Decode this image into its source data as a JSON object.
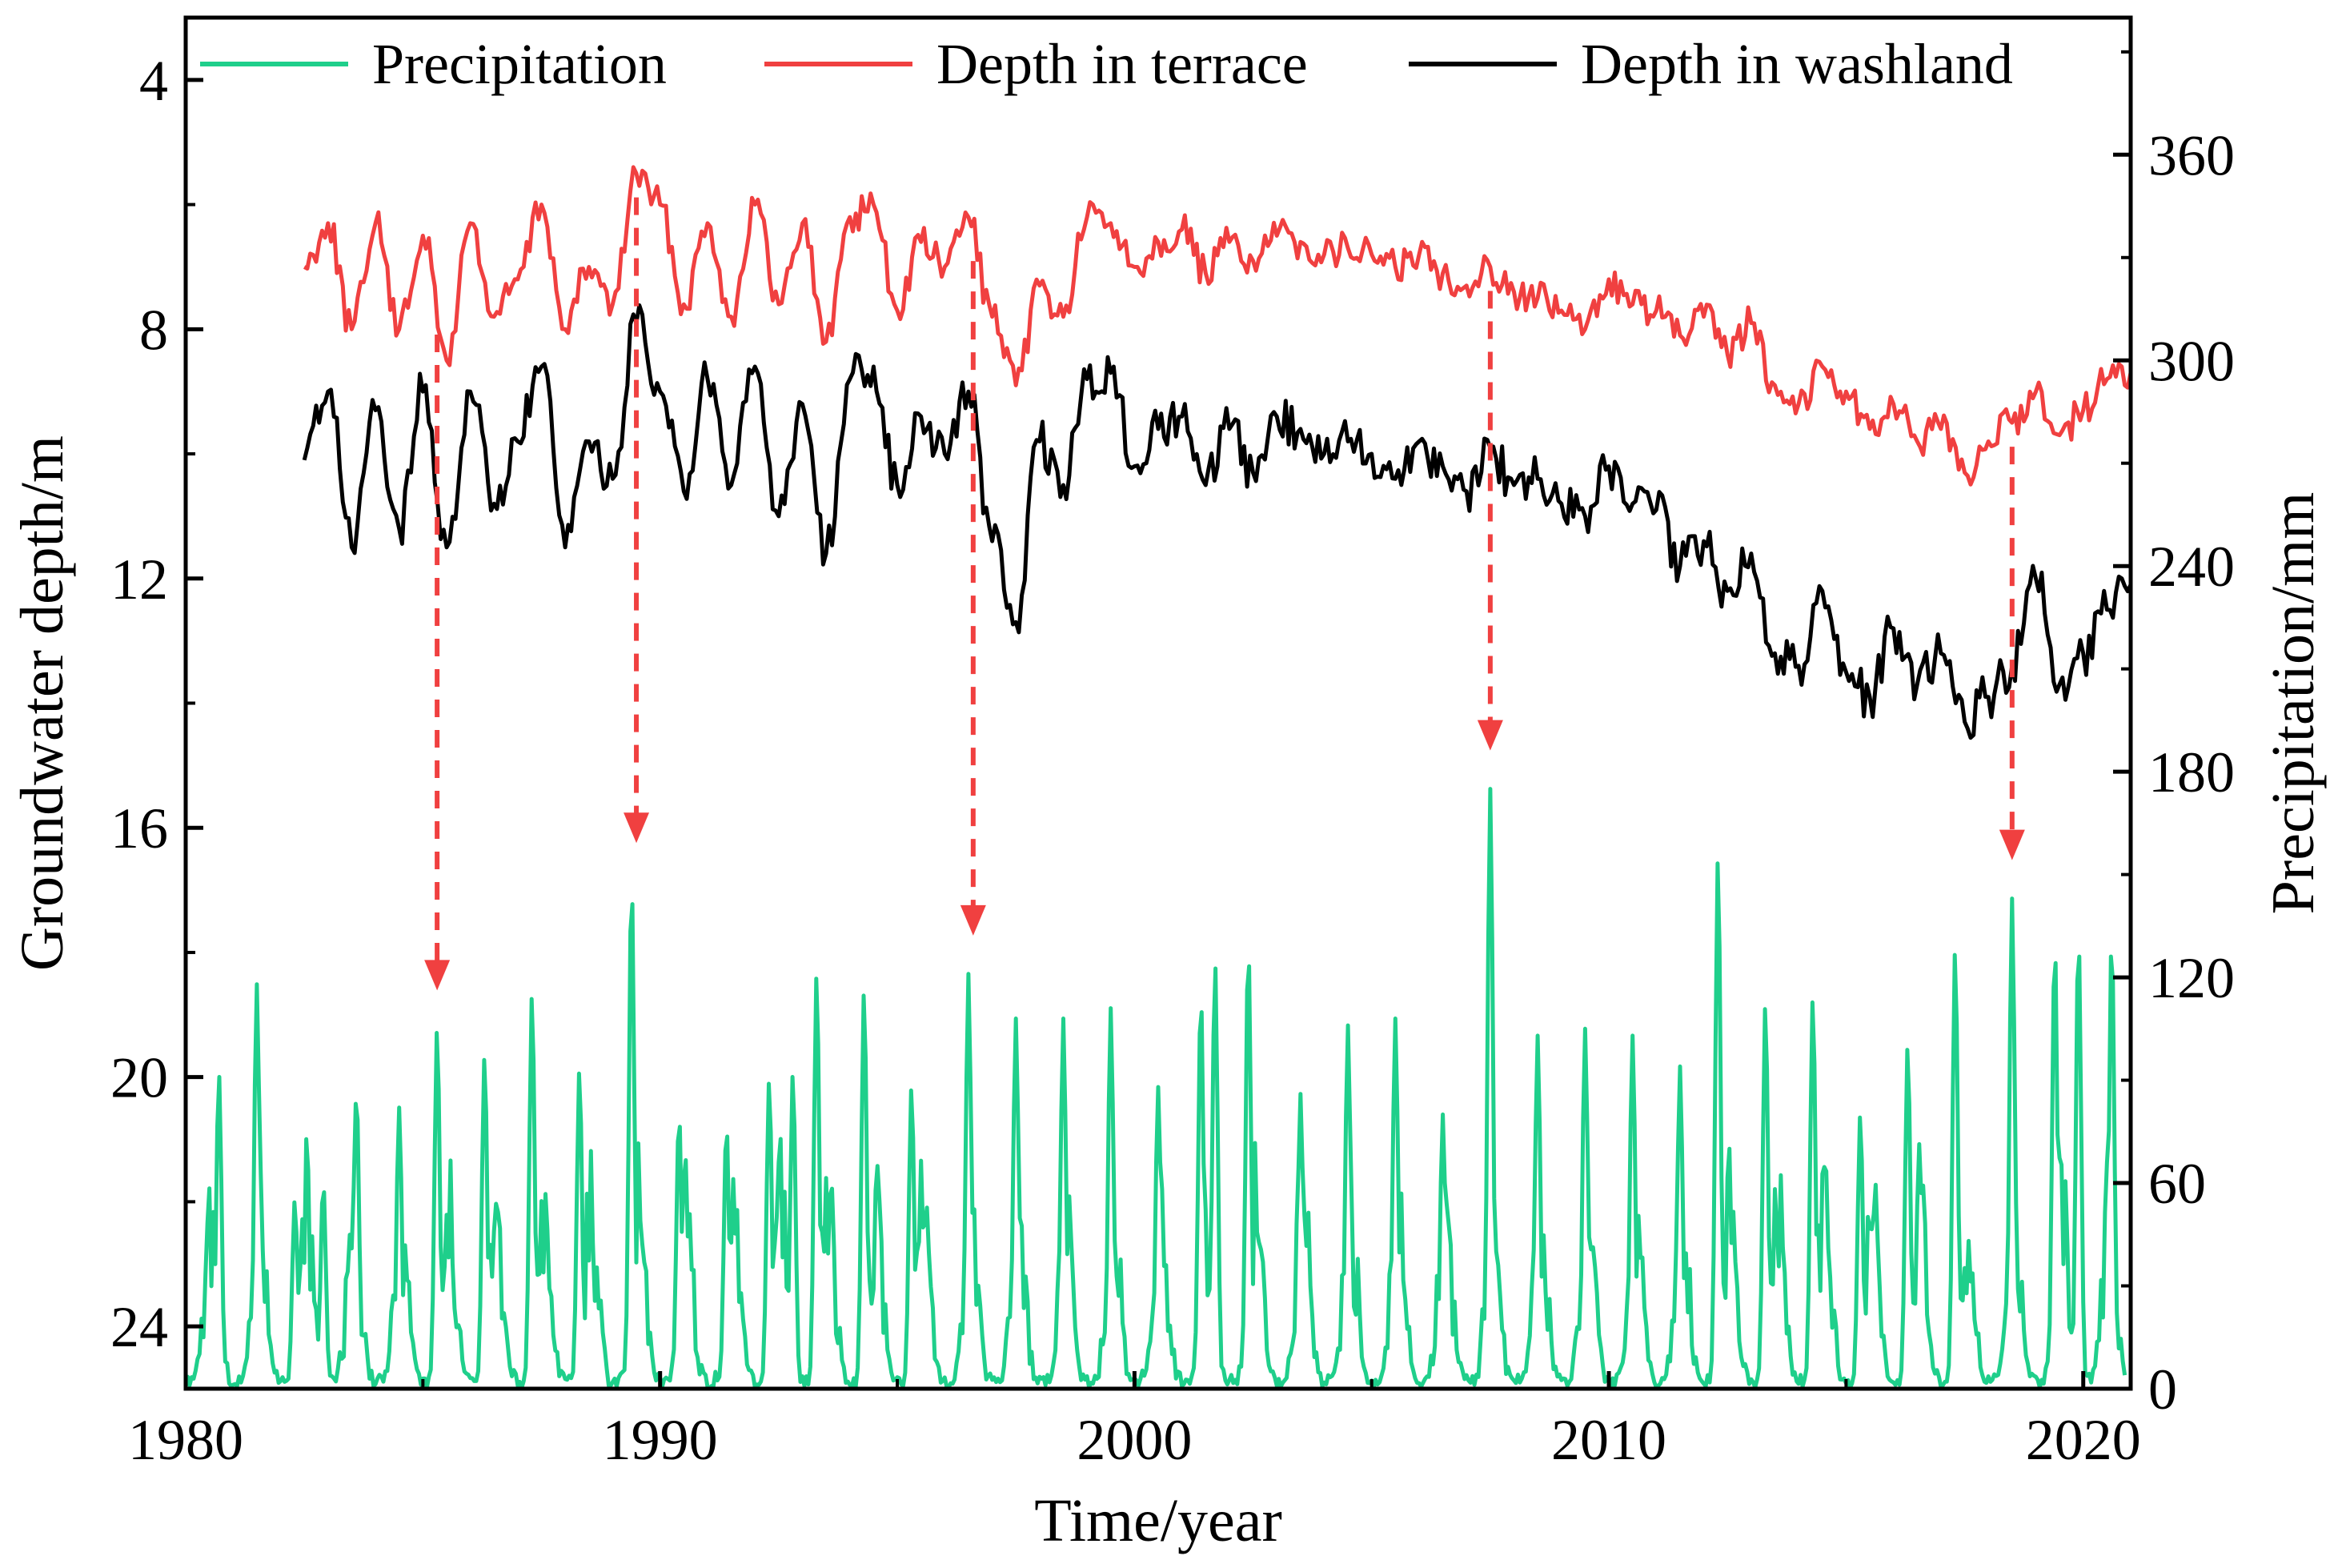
{
  "chart_data": {
    "type": "line",
    "title": "",
    "xlabel": "Time/year",
    "ylabel_left": "Groundwater depth/m",
    "ylabel_right": "Precipitation/mm",
    "xlim": [
      1980,
      2021
    ],
    "ylim_left": [
      25,
      3
    ],
    "ylim_right": [
      0,
      400
    ],
    "left_axis_inverted": true,
    "grid": false,
    "legend_position": "top",
    "x_ticks": [
      1980,
      1990,
      2000,
      2010,
      2020
    ],
    "x_tick_labels": [
      "1980",
      "1990",
      "2000",
      "2010",
      "2020"
    ],
    "y_left_ticks": [
      4,
      8,
      12,
      16,
      20,
      24
    ],
    "y_left_tick_labels": [
      "4",
      "8",
      "12",
      "16",
      "20",
      "24"
    ],
    "y_right_ticks": [
      0,
      60,
      120,
      180,
      240,
      300,
      360
    ],
    "y_right_tick_labels": [
      "0",
      "60",
      "120",
      "180",
      "240",
      "300",
      "360"
    ],
    "legend": [
      {
        "key": "precip",
        "label": "Precipitation",
        "color": "#1fcf8b"
      },
      {
        "key": "terrace",
        "label": "Depth in terrace",
        "color": "#f04040"
      },
      {
        "key": "washland",
        "label": "Depth in washland",
        "color": "#000000"
      }
    ],
    "series": [
      {
        "name": "Depth in terrace",
        "axis": "left",
        "color": "#f04040",
        "x": [
          1982.5,
          1983.0,
          1983.5,
          1984.0,
          1984.5,
          1985.0,
          1985.5,
          1986.0,
          1986.5,
          1987.0,
          1987.5,
          1988.0,
          1988.5,
          1989.0,
          1989.5,
          1990.0,
          1990.5,
          1991.0,
          1991.5,
          1992.0,
          1992.5,
          1993.0,
          1993.5,
          1994.0,
          1994.5,
          1995.0,
          1995.5,
          1996.0,
          1996.5,
          1997.0,
          1997.5,
          1998.0,
          1998.5,
          1999.0,
          1999.5,
          2000.0,
          2000.5,
          2001.0,
          2001.5,
          2002.0,
          2002.5,
          2003.0,
          2003.5,
          2004.0,
          2004.5,
          2005.0,
          2005.5,
          2006.0,
          2006.5,
          2007.0,
          2007.5,
          2008.0,
          2008.5,
          2009.0,
          2009.5,
          2010.0,
          2010.5,
          2011.0,
          2011.5,
          2012.0,
          2012.5,
          2013.0,
          2013.5,
          2014.0,
          2014.5,
          2015.0,
          2015.5,
          2016.0,
          2016.5,
          2017.0,
          2017.5,
          2018.0,
          2018.5,
          2019.0,
          2019.5,
          2020.0,
          2020.5,
          2021.0
        ],
        "y": [
          7.0,
          6.3,
          8.0,
          6.3,
          8.0,
          6.5,
          8.5,
          6.3,
          7.8,
          7.2,
          6.0,
          8.0,
          7.0,
          7.6,
          5.5,
          6.0,
          7.6,
          6.3,
          7.8,
          6.0,
          7.6,
          6.3,
          8.2,
          6.2,
          6.0,
          7.7,
          6.6,
          7.0,
          6.2,
          7.8,
          8.9,
          7.3,
          7.8,
          6.2,
          6.3,
          7.0,
          6.6,
          6.4,
          7.1,
          6.6,
          6.9,
          6.5,
          6.6,
          6.8,
          6.7,
          6.8,
          7.0,
          6.8,
          7.1,
          7.3,
          7.0,
          7.4,
          7.5,
          7.7,
          8.0,
          7.2,
          7.6,
          7.7,
          8.1,
          7.8,
          8.4,
          7.9,
          8.9,
          9.2,
          8.6,
          9.0,
          9.6,
          9.2,
          9.8,
          9.6,
          10.3,
          9.8,
          9.5,
          9.0,
          9.7,
          9.3,
          8.8,
          8.7
        ]
      },
      {
        "name": "Depth in washland",
        "axis": "left",
        "color": "#000000",
        "x": [
          1982.5,
          1983.0,
          1983.5,
          1984.0,
          1984.5,
          1985.0,
          1985.5,
          1986.0,
          1986.5,
          1987.0,
          1987.5,
          1988.0,
          1988.5,
          1989.0,
          1989.5,
          1990.0,
          1990.5,
          1991.0,
          1991.5,
          1992.0,
          1992.5,
          1993.0,
          1993.5,
          1994.0,
          1994.5,
          1995.0,
          1995.5,
          1996.0,
          1996.5,
          1997.0,
          1997.5,
          1998.0,
          1998.5,
          1999.0,
          1999.5,
          2000.0,
          2000.5,
          2001.0,
          2001.5,
          2002.0,
          2002.5,
          2003.0,
          2003.5,
          2004.0,
          2004.5,
          2005.0,
          2005.5,
          2006.0,
          2006.5,
          2007.0,
          2007.5,
          2008.0,
          2008.5,
          2009.0,
          2009.5,
          2010.0,
          2010.5,
          2011.0,
          2011.5,
          2012.0,
          2012.5,
          2013.0,
          2013.5,
          2014.0,
          2014.5,
          2015.0,
          2015.5,
          2016.0,
          2016.5,
          2017.0,
          2017.5,
          2018.0,
          2018.5,
          2019.0,
          2019.5,
          2020.0,
          2020.5,
          2021.0
        ],
        "y": [
          10.1,
          9.0,
          11.5,
          9.3,
          11.2,
          9.0,
          11.5,
          9.0,
          10.8,
          9.8,
          8.6,
          11.5,
          9.8,
          10.4,
          7.9,
          9.0,
          10.6,
          8.8,
          10.5,
          8.6,
          11.0,
          9.2,
          11.6,
          8.8,
          8.6,
          10.5,
          9.4,
          10.0,
          9.0,
          11.4,
          12.7,
          9.8,
          10.5,
          8.8,
          8.7,
          10.2,
          9.6,
          9.4,
          10.5,
          9.6,
          10.3,
          9.4,
          9.6,
          10.0,
          9.8,
          10.0,
          10.4,
          9.8,
          10.2,
          10.6,
          9.9,
          10.5,
          10.4,
          10.8,
          11.0,
          10.2,
          10.8,
          10.9,
          11.8,
          11.4,
          12.2,
          11.6,
          13.2,
          13.4,
          12.2,
          13.5,
          13.9,
          12.8,
          13.7,
          13.2,
          14.3,
          13.9,
          13.4,
          12.0,
          13.7,
          13.2,
          12.5,
          12.1
        ]
      },
      {
        "name": "Precipitation",
        "axis": "right",
        "color": "#1fcf8b",
        "peak_years": [
          1980.7,
          1981.5,
          1982.3,
          1982.9,
          1983.6,
          1984.5,
          1985.3,
          1986.3,
          1987.3,
          1988.3,
          1989.4,
          1990.4,
          1991.4,
          1992.3,
          1992.8,
          1993.3,
          1994.3,
          1995.3,
          1996.5,
          1997.5,
          1998.5,
          1999.5,
          2000.5,
          2001.4,
          2001.7,
          2002.4,
          2003.5,
          2004.5,
          2005.5,
          2006.5,
          2007.5,
          2008.5,
          2009.5,
          2010.5,
          2011.5,
          2012.3,
          2013.3,
          2014.3,
          2015.3,
          2016.3,
          2017.3,
          2018.5,
          2019.4,
          2019.9,
          2020.6
        ],
        "peak_values": [
          92,
          118,
          55,
          60,
          87,
          82,
          105,
          97,
          115,
          93,
          148,
          80,
          77,
          90,
          92,
          121,
          116,
          88,
          121,
          108,
          108,
          111,
          88,
          115,
          124,
          129,
          86,
          106,
          108,
          80,
          175,
          103,
          105,
          103,
          94,
          155,
          112,
          114,
          80,
          100,
          128,
          143,
          130,
          132,
          132
        ]
      }
    ],
    "annotations": [
      {
        "type": "dashed-arrow",
        "x": 1985.3,
        "color": "#f04040",
        "description": "from washland depth minimum down to precipitation peak"
      },
      {
        "type": "dashed-arrow",
        "x": 1989.5,
        "color": "#f04040",
        "description": "from washland depth peak down to precipitation peak"
      },
      {
        "type": "dashed-arrow",
        "x": 1996.6,
        "color": "#f04040",
        "description": "from washland depth peak down to precipitation peak"
      },
      {
        "type": "dashed-arrow",
        "x": 2007.5,
        "color": "#f04040",
        "description": "from washland depth peak down to precipitation peak"
      },
      {
        "type": "dashed-arrow",
        "x": 2018.5,
        "color": "#f04040",
        "description": "from washland depth peak down to precipitation peak"
      }
    ]
  }
}
